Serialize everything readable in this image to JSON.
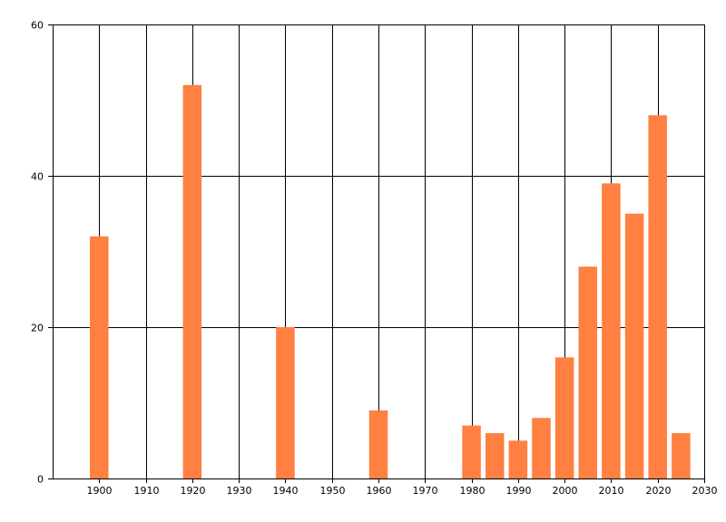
{
  "chart_data": {
    "type": "bar",
    "title": "",
    "xlabel": "",
    "ylabel": "",
    "x": [
      1900,
      1920,
      1940,
      1960,
      1980,
      1985,
      1990,
      1995,
      2000,
      2005,
      2010,
      2015,
      2020,
      2025
    ],
    "values": [
      32,
      52,
      20,
      9,
      7,
      6,
      5,
      8,
      16,
      28,
      39,
      35,
      48,
      6
    ],
    "xlim": [
      1890,
      2030
    ],
    "ylim": [
      0,
      60
    ],
    "xticks": [
      1900,
      1910,
      1920,
      1930,
      1940,
      1950,
      1960,
      1970,
      1980,
      1990,
      2000,
      2010,
      2020,
      2030
    ],
    "yticks": [
      0,
      20,
      40,
      60
    ],
    "xtick_labels": [
      "1900",
      "1910",
      "1920",
      "1930",
      "1940",
      "1950",
      "1960",
      "1970",
      "1980",
      "1990",
      "2000",
      "2010",
      "2020",
      "2030"
    ],
    "ytick_labels": [
      "0",
      "20",
      "40",
      "60"
    ],
    "bar_width_years": 4,
    "grid": true,
    "bar_color": "#ff8040",
    "grid_color": "#000000",
    "background": "#ffffff"
  }
}
